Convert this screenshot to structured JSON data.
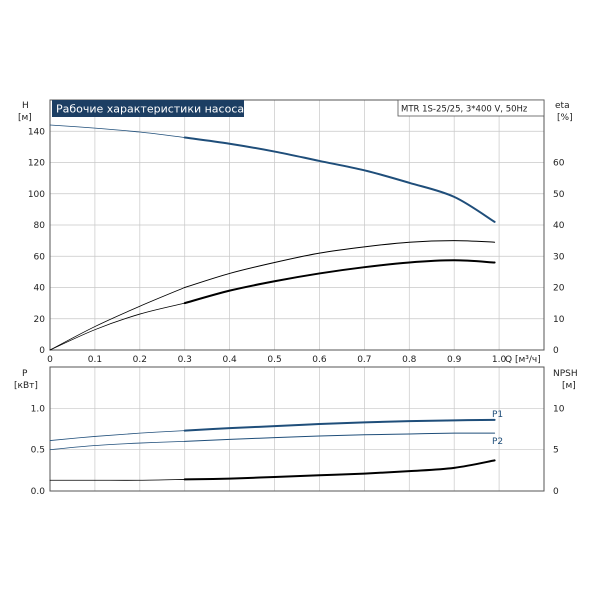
{
  "colors": {
    "blue": "#1f4e7a",
    "black": "#000000",
    "grid": "#c8c8c8",
    "frame": "#555555",
    "title_bg": "#1c3e63"
  },
  "chart_data": [
    {
      "type": "line",
      "title": "Рабочие характеристики насоса",
      "subtitle": "MTR 1S-25/25, 3*400 V, 50Hz",
      "xlabel": "Q [м³/ч]",
      "ylabel_left": "H",
      "ylabel_left_unit": "[м]",
      "ylabel_right": "eta",
      "ylabel_right_unit": "[%]",
      "xlim": [
        0,
        1.1
      ],
      "ylim_left": [
        0,
        160
      ],
      "ylim_right": [
        0,
        80
      ],
      "x_ticks": [
        "0",
        "0.1",
        "0.2",
        "0.3",
        "0.4",
        "0.5",
        "0.6",
        "0.7",
        "0.8",
        "0.9",
        "1.0"
      ],
      "y_left_ticks": [
        "0",
        "20",
        "40",
        "60",
        "80",
        "100",
        "120",
        "140"
      ],
      "y_right_ticks": [
        "0",
        "10",
        "20",
        "30",
        "40",
        "50",
        "60"
      ],
      "grid": true,
      "series": [
        {
          "id": "H-extended",
          "axis": "left",
          "color": "blue",
          "width": 0.8,
          "x": [
            0,
            0.1,
            0.2,
            0.3
          ],
          "y": [
            144,
            142,
            139.5,
            136
          ]
        },
        {
          "id": "H",
          "axis": "left",
          "color": "blue",
          "width": 2,
          "x": [
            0.3,
            0.4,
            0.5,
            0.6,
            0.7,
            0.8,
            0.9,
            0.99
          ],
          "y": [
            136,
            132,
            127,
            121,
            115,
            107,
            98,
            82
          ]
        },
        {
          "id": "eta-total-extended",
          "axis": "right",
          "color": "black",
          "width": 0.8,
          "x": [
            0,
            0.1,
            0.2,
            0.3
          ],
          "y": [
            0,
            7.5,
            14,
            20
          ]
        },
        {
          "id": "eta-total",
          "axis": "right",
          "color": "black",
          "width": 1,
          "x": [
            0.3,
            0.4,
            0.5,
            0.6,
            0.7,
            0.8,
            0.9,
            0.99
          ],
          "y": [
            20,
            24.5,
            28,
            31,
            33,
            34.5,
            35,
            34.5
          ]
        },
        {
          "id": "eta-pump-extended",
          "axis": "right",
          "color": "black",
          "width": 0.8,
          "x": [
            0,
            0.1,
            0.2,
            0.3
          ],
          "y": [
            0,
            6.5,
            11.5,
            15
          ]
        },
        {
          "id": "eta-pump",
          "axis": "right",
          "color": "black",
          "width": 2,
          "x": [
            0.3,
            0.4,
            0.5,
            0.6,
            0.7,
            0.8,
            0.9,
            0.99
          ],
          "y": [
            15,
            19,
            22,
            24.5,
            26.5,
            28,
            28.7,
            28
          ]
        }
      ]
    },
    {
      "type": "line",
      "xlim": [
        0,
        1.1
      ],
      "ylabel_left": "P",
      "ylabel_left_unit": "[кВт]",
      "ylabel_right": "NPSH",
      "ylabel_right_unit": "[м]",
      "ylim_left": [
        0,
        1.5
      ],
      "ylim_right": [
        0,
        15
      ],
      "y_left_ticks": [
        "0.0",
        "0.5",
        "1.0"
      ],
      "y_right_ticks": [
        "0",
        "5",
        "10"
      ],
      "grid": true,
      "series": [
        {
          "id": "P1-extended",
          "axis": "left",
          "color": "blue",
          "width": 0.8,
          "x": [
            0,
            0.1,
            0.2,
            0.3
          ],
          "y": [
            0.61,
            0.66,
            0.7,
            0.73
          ]
        },
        {
          "id": "P1",
          "name": "P1",
          "axis": "left",
          "color": "blue",
          "width": 2,
          "x": [
            0.3,
            0.4,
            0.5,
            0.6,
            0.7,
            0.8,
            0.9,
            0.99
          ],
          "y": [
            0.73,
            0.76,
            0.785,
            0.81,
            0.83,
            0.845,
            0.855,
            0.86
          ]
        },
        {
          "id": "P2-extended",
          "axis": "left",
          "color": "blue",
          "width": 0.8,
          "x": [
            0,
            0.1,
            0.2,
            0.3
          ],
          "y": [
            0.5,
            0.55,
            0.58,
            0.6
          ]
        },
        {
          "id": "P2",
          "name": "P2",
          "axis": "left",
          "color": "blue",
          "width": 1,
          "x": [
            0.3,
            0.4,
            0.5,
            0.6,
            0.7,
            0.8,
            0.9,
            0.99
          ],
          "y": [
            0.6,
            0.625,
            0.645,
            0.665,
            0.68,
            0.69,
            0.7,
            0.7
          ]
        },
        {
          "id": "NPSH-extended",
          "axis": "right",
          "color": "black",
          "width": 0.8,
          "x": [
            0,
            0.1,
            0.2,
            0.3
          ],
          "y": [
            1.3,
            1.3,
            1.3,
            1.4
          ]
        },
        {
          "id": "NPSH",
          "axis": "right",
          "color": "black",
          "width": 2,
          "x": [
            0.3,
            0.4,
            0.5,
            0.6,
            0.7,
            0.8,
            0.9,
            0.99
          ],
          "y": [
            1.4,
            1.5,
            1.7,
            1.9,
            2.1,
            2.4,
            2.8,
            3.7
          ]
        }
      ]
    }
  ]
}
